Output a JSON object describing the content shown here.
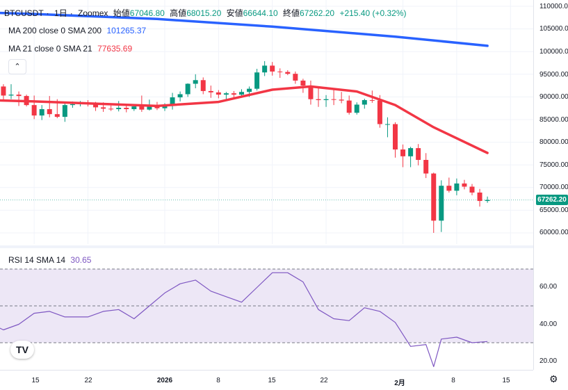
{
  "header": {
    "symbol": "BTCUSDT",
    "interval": "1日",
    "exchange": "Zoomex",
    "open_label": "始値",
    "open": "67046.80",
    "high_label": "高値",
    "high": "68015.20",
    "low_label": "安値",
    "low": "66644.10",
    "close_label": "終値",
    "close": "67262.20",
    "change": "+215.40 (+0.32%)"
  },
  "indicators": {
    "ma200_label": "MA 200 close 0 SMA 200",
    "ma200_value": "101265.37",
    "ma21_label": "MA 21 close 0 SMA 21",
    "ma21_value": "77635.69",
    "rsi_label": "RSI 14 SMA 14",
    "rsi_value": "30.65"
  },
  "price_axis": {
    "labels": [
      "110000.00",
      "105000.00",
      "100000.00",
      "95000.00",
      "90000.00",
      "85000.00",
      "80000.00",
      "75000.00",
      "70000.00",
      "65000.00",
      "60000.00"
    ],
    "last_price": "67262.20"
  },
  "rsi_axis": {
    "labels": [
      "60.00",
      "40.00",
      "20.00"
    ]
  },
  "time_axis": {
    "labels": [
      "15",
      "22",
      "2026",
      "8",
      "15",
      "22",
      "2月",
      "8",
      "15"
    ]
  },
  "controls": {
    "collapse_icon": "chevron-up-icon",
    "settings_icon": "gear-icon",
    "logo_text": "TV"
  },
  "colors": {
    "up": "#089981",
    "down": "#f23645",
    "ma200": "#2962ff",
    "ma21": "#f23645",
    "rsi": "#7e57c2",
    "rsi_band": "#ede7f6"
  },
  "chart_data": [
    {
      "type": "candlestick",
      "title": "BTCUSDT · 1日 · Zoomex",
      "ylim": [
        58000,
        111000
      ],
      "dates": [
        "2025-12-09",
        "2025-12-10",
        "2025-12-11",
        "2025-12-12",
        "2025-12-13",
        "2025-12-14",
        "2025-12-15",
        "2025-12-16",
        "2025-12-17",
        "2025-12-18",
        "2025-12-19",
        "2025-12-20",
        "2025-12-21",
        "2025-12-22",
        "2025-12-23",
        "2025-12-24",
        "2025-12-25",
        "2025-12-26",
        "2025-12-27",
        "2025-12-28",
        "2025-12-29",
        "2025-12-30",
        "2025-12-31",
        "2026-01-01",
        "2026-01-02",
        "2026-01-03",
        "2026-01-04",
        "2026-01-05",
        "2026-01-06",
        "2026-01-07",
        "2026-01-08",
        "2026-01-09",
        "2026-01-10",
        "2026-01-11",
        "2026-01-12",
        "2026-01-13",
        "2026-01-14",
        "2026-01-15",
        "2026-01-16",
        "2026-01-17",
        "2026-01-18",
        "2026-01-19",
        "2026-01-20",
        "2026-01-21",
        "2026-01-22",
        "2026-01-23",
        "2026-01-24",
        "2026-01-25",
        "2026-01-26",
        "2026-01-27",
        "2026-01-28",
        "2026-01-29",
        "2026-01-30",
        "2026-01-31",
        "2026-02-01",
        "2026-02-02",
        "2026-02-03",
        "2026-02-04",
        "2026-02-05",
        "2026-02-06",
        "2026-02-07",
        "2026-02-08",
        "2026-02-09",
        "2026-02-10",
        "2026-02-11",
        "2026-02-12"
      ],
      "open": [
        90600,
        92600,
        92300,
        90300,
        90500,
        90200,
        88200,
        85900,
        87300,
        86200,
        85600,
        88200,
        88400,
        88600,
        88400,
        87700,
        87400,
        87300,
        87600,
        87300,
        87900,
        87200,
        88100,
        87500,
        88300,
        89900,
        90600,
        92900,
        93700,
        91300,
        91000,
        90500,
        90800,
        90500,
        91100,
        91800,
        95400,
        96900,
        95600,
        95500,
        95100,
        93600,
        92500,
        89500,
        89300,
        89500,
        89400,
        89200,
        86500,
        88300,
        89300,
        89200,
        84000,
        84000,
        78400,
        76900,
        78700,
        76100,
        73100,
        62700,
        70400,
        69300,
        70900,
        70200,
        68900,
        67046.8
      ],
      "close": [
        92600,
        92300,
        90300,
        90500,
        90200,
        88200,
        85900,
        87300,
        86200,
        85600,
        88200,
        88400,
        88600,
        88400,
        87700,
        87400,
        87300,
        87600,
        87300,
        87900,
        87200,
        88100,
        87500,
        88300,
        89900,
        90600,
        92900,
        93700,
        91300,
        91000,
        90500,
        90800,
        90500,
        91100,
        91800,
        95400,
        96900,
        95600,
        95500,
        95100,
        93600,
        92500,
        89500,
        89300,
        89500,
        89400,
        89200,
        86500,
        88300,
        89300,
        89200,
        84000,
        84000,
        78400,
        76900,
        78700,
        76100,
        73100,
        62700,
        70400,
        69300,
        70900,
        70200,
        68900,
        67046.8,
        67262.2
      ],
      "high": [
        93500,
        94100,
        92800,
        92800,
        91200,
        90500,
        90300,
        88200,
        90200,
        89500,
        88900,
        89000,
        89100,
        89300,
        88900,
        88800,
        88100,
        89100,
        88200,
        88400,
        90300,
        89400,
        88900,
        88600,
        90900,
        91200,
        93000,
        95000,
        94300,
        92500,
        91500,
        91100,
        91300,
        91700,
        92300,
        96200,
        97900,
        97700,
        96300,
        95900,
        95600,
        94000,
        93600,
        92000,
        90400,
        91800,
        91100,
        90300,
        88800,
        89600,
        91400,
        90400,
        85500,
        84400,
        79500,
        79000,
        79600,
        77600,
        73300,
        71600,
        72200,
        72000,
        71700,
        70800,
        69700,
        68015.2
      ],
      "low": [
        89700,
        89900,
        89200,
        89500,
        88000,
        87900,
        85100,
        84900,
        85500,
        85300,
        84500,
        87600,
        87900,
        87900,
        86900,
        86700,
        86900,
        86800,
        86600,
        86900,
        86700,
        87000,
        87100,
        86900,
        87200,
        89000,
        90000,
        91900,
        90600,
        89800,
        89700,
        89500,
        89700,
        89900,
        90000,
        91400,
        94600,
        94700,
        94200,
        94800,
        92900,
        90900,
        88300,
        87800,
        87800,
        88200,
        88600,
        86100,
        86100,
        87400,
        88700,
        83200,
        81100,
        76600,
        74500,
        74500,
        74900,
        72100,
        60000,
        60200,
        68900,
        68300,
        69600,
        68300,
        65800,
        66644.1
      ]
    },
    {
      "type": "line",
      "series": [
        {
          "name": "MA 200 close 0 SMA 200",
          "x": [
            "2025-12-03",
            "2025-12-15",
            "2025-12-31",
            "2026-01-15",
            "2026-01-31",
            "2026-02-12"
          ],
          "values": [
            108900,
            108300,
            107200,
            105500,
            103300,
            101265.37
          ]
        },
        {
          "name": "MA 21 close 0 SMA 21",
          "x": [
            "2025-12-03",
            "2025-12-15",
            "2025-12-31",
            "2026-01-08",
            "2026-01-15",
            "2026-01-20",
            "2026-01-26",
            "2026-01-31",
            "2026-02-05",
            "2026-02-12"
          ],
          "values": [
            89600,
            89000,
            88000,
            88900,
            91600,
            92300,
            91200,
            88200,
            83300,
            77635.69
          ]
        }
      ]
    },
    {
      "type": "line",
      "title": "RSI 14 SMA 14",
      "ylim": [
        15,
        72
      ],
      "bands": [
        30,
        50,
        70
      ],
      "series": [
        {
          "name": "RSI 14",
          "x": [
            "2025-12-03",
            "2025-12-05",
            "2025-12-07",
            "2025-12-09",
            "2025-12-11",
            "2025-12-13",
            "2025-12-15",
            "2025-12-17",
            "2025-12-19",
            "2025-12-22",
            "2025-12-24",
            "2025-12-26",
            "2025-12-28",
            "2025-12-30",
            "2026-01-01",
            "2026-01-03",
            "2026-01-05",
            "2026-01-07",
            "2026-01-09",
            "2026-01-11",
            "2026-01-13",
            "2026-01-15",
            "2026-01-17",
            "2026-01-19",
            "2026-01-21",
            "2026-01-23",
            "2026-01-25",
            "2026-01-27",
            "2026-01-29",
            "2026-01-31",
            "2026-02-02",
            "2026-02-04",
            "2026-02-05",
            "2026-02-06",
            "2026-02-08",
            "2026-02-10",
            "2026-02-12"
          ],
          "values": [
            50,
            44,
            38,
            41,
            37,
            40,
            46,
            47,
            44,
            44,
            47,
            48,
            43,
            50,
            57,
            62,
            64,
            58,
            55,
            52,
            60,
            68,
            68,
            63,
            48,
            43,
            42,
            49,
            47,
            41,
            28,
            29,
            17,
            32,
            33,
            30,
            30.65
          ]
        }
      ]
    }
  ]
}
